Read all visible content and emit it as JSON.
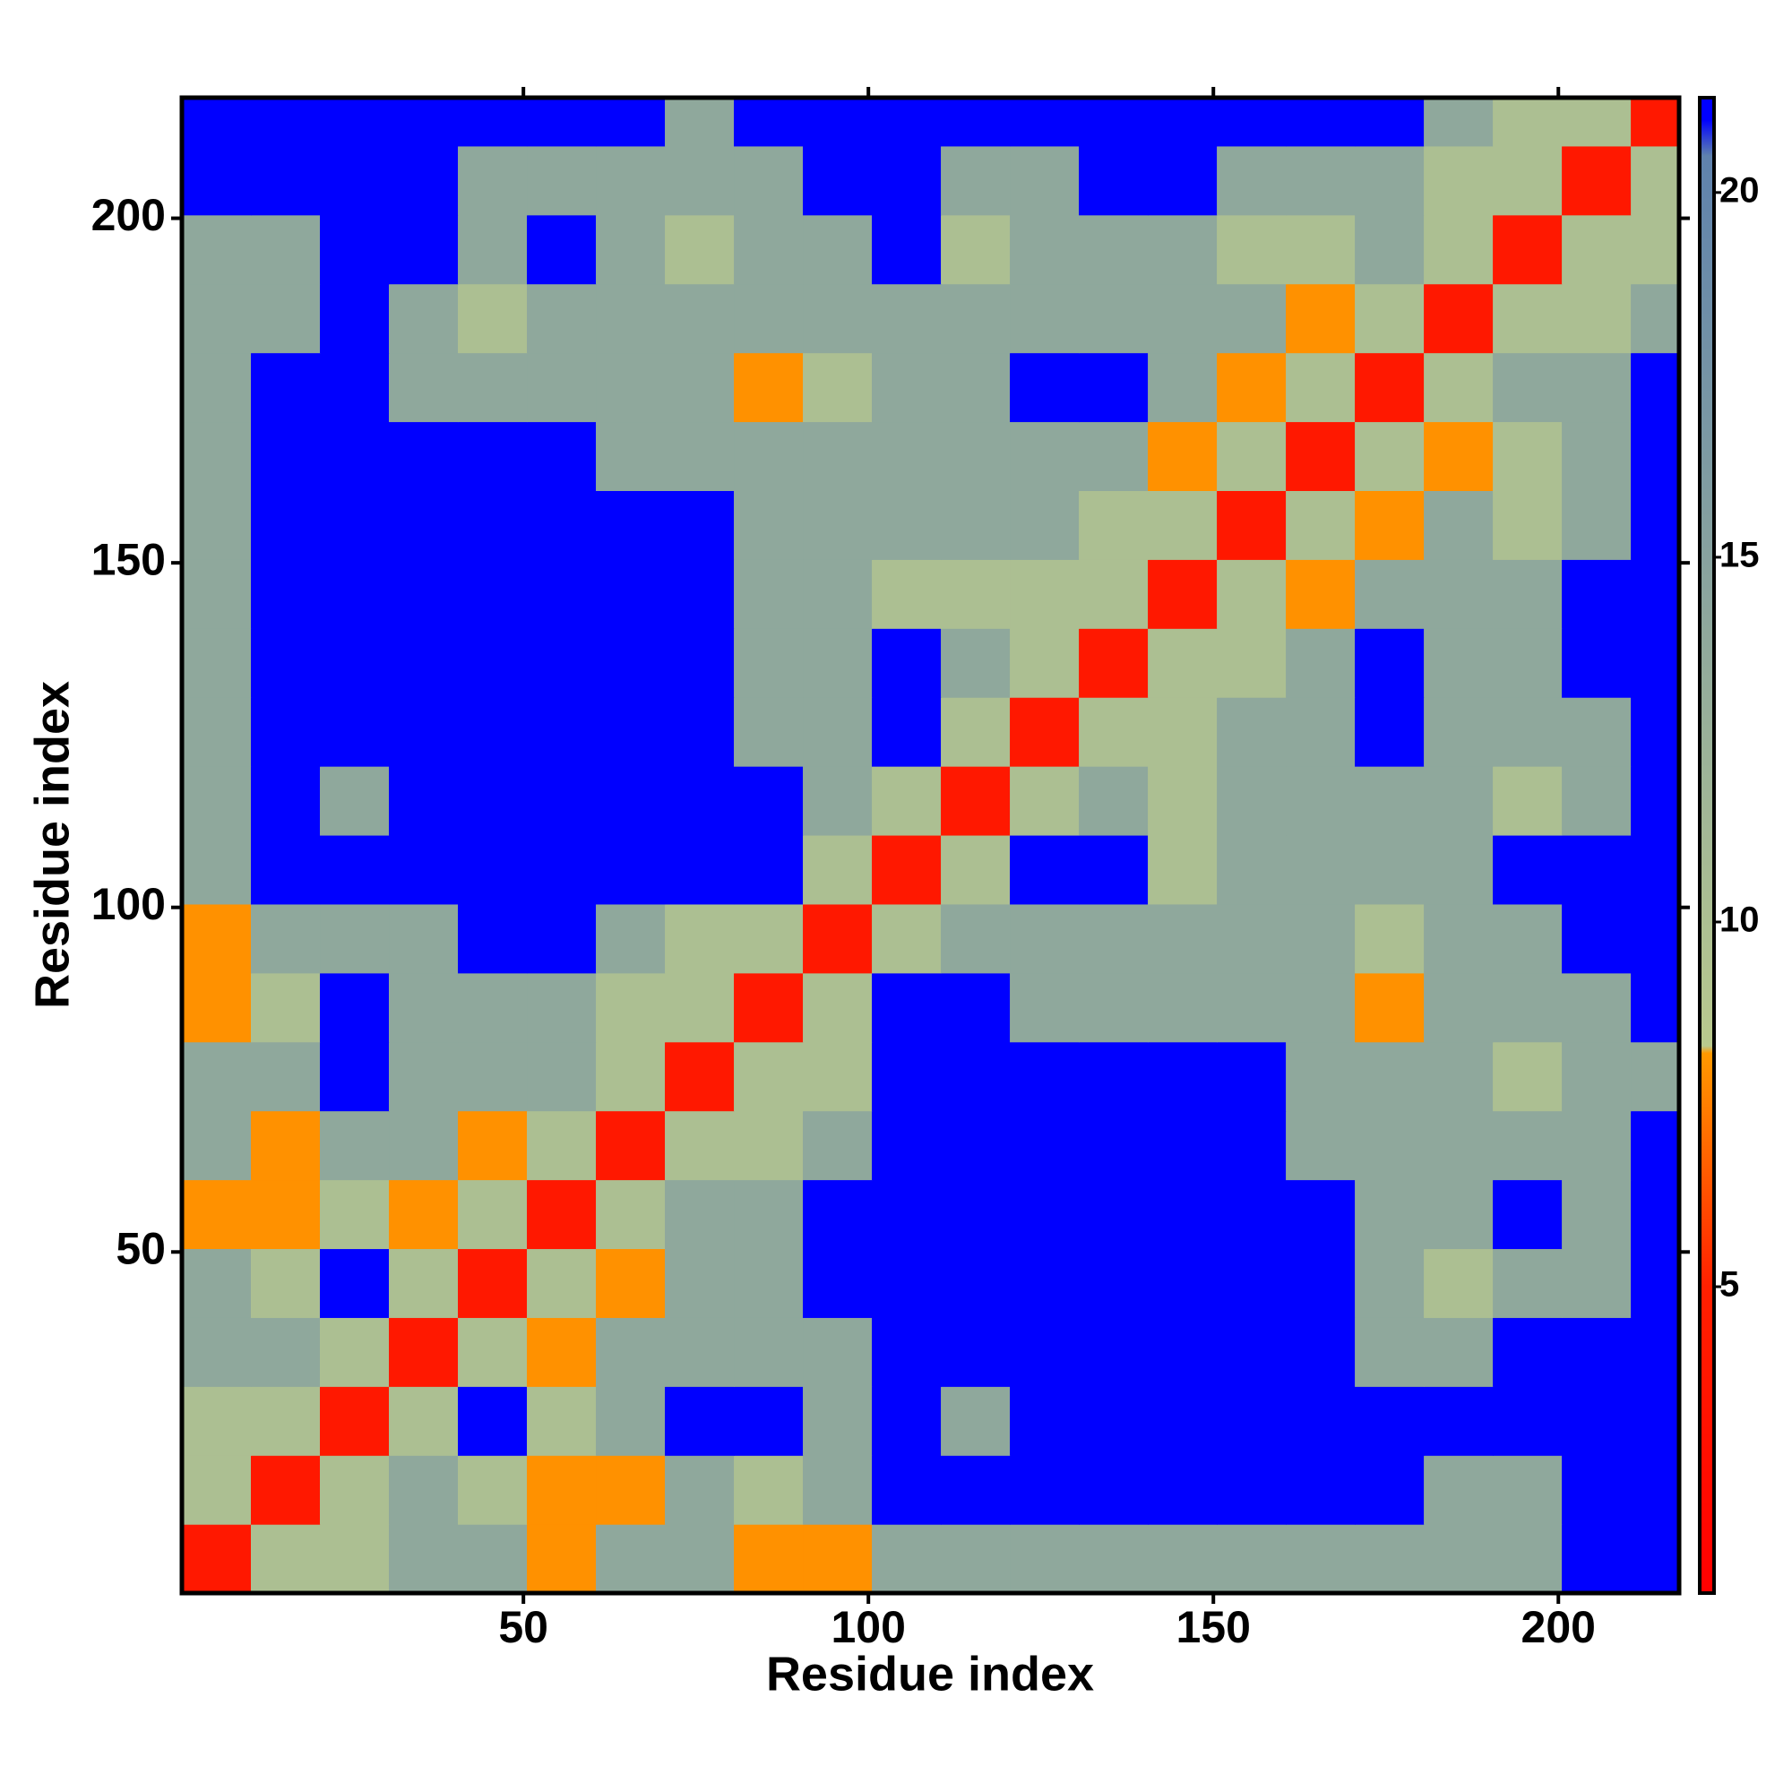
{
  "chart_data": {
    "type": "heatmap",
    "xlabel": "Residue index",
    "ylabel": "Residue index",
    "xbins": [
      0.5,
      10.5,
      20.5,
      30.5,
      40.5,
      50.5,
      60.5,
      70.5,
      80.5,
      90.5,
      100.5,
      110.5,
      120.5,
      130.5,
      140.5,
      150.5,
      160.5,
      170.5,
      180.5,
      190.5,
      200.5,
      210.5,
      217.5
    ],
    "ybins": [
      0.5,
      10.5,
      20.5,
      30.5,
      40.5,
      50.5,
      60.5,
      70.5,
      80.5,
      90.5,
      100.5,
      110.5,
      120.5,
      130.5,
      140.5,
      150.5,
      160.5,
      170.5,
      180.5,
      190.5,
      200.5,
      210.5,
      217.5
    ],
    "z": [
      [
        4,
        10,
        10,
        14,
        14,
        8,
        14,
        14,
        8,
        8,
        14,
        14,
        14,
        14,
        14,
        14,
        14,
        14,
        14,
        14,
        21,
        21
      ],
      [
        10,
        4,
        10,
        14,
        10,
        8,
        8,
        14,
        10,
        14,
        21,
        21,
        21,
        21,
        21,
        21,
        21,
        21,
        14,
        14,
        21,
        21
      ],
      [
        10,
        10,
        4,
        10,
        21,
        10,
        14,
        21,
        21,
        14,
        21,
        14,
        21,
        21,
        21,
        21,
        21,
        21,
        21,
        21,
        21,
        21
      ],
      [
        14,
        14,
        10,
        4,
        10,
        8,
        14,
        14,
        14,
        14,
        21,
        21,
        21,
        21,
        21,
        21,
        21,
        14,
        14,
        21,
        21,
        21
      ],
      [
        14,
        10,
        21,
        10,
        4,
        10,
        8,
        14,
        14,
        21,
        21,
        21,
        21,
        21,
        21,
        21,
        21,
        14,
        10,
        14,
        14,
        21
      ],
      [
        8,
        8,
        10,
        8,
        10,
        4,
        10,
        14,
        14,
        21,
        21,
        21,
        21,
        21,
        21,
        21,
        21,
        14,
        14,
        21,
        14,
        21
      ],
      [
        14,
        8,
        14,
        14,
        8,
        10,
        4,
        10,
        10,
        14,
        21,
        21,
        21,
        21,
        21,
        21,
        14,
        14,
        14,
        14,
        14,
        21
      ],
      [
        14,
        14,
        21,
        14,
        14,
        14,
        10,
        4,
        10,
        10,
        21,
        21,
        21,
        21,
        21,
        21,
        14,
        14,
        14,
        10,
        14,
        14
      ],
      [
        8,
        10,
        21,
        14,
        14,
        14,
        10,
        10,
        4,
        10,
        21,
        21,
        14,
        14,
        14,
        14,
        14,
        8,
        14,
        14,
        14,
        21
      ],
      [
        8,
        14,
        14,
        14,
        21,
        21,
        14,
        10,
        10,
        4,
        10,
        14,
        14,
        14,
        14,
        14,
        14,
        10,
        14,
        14,
        21,
        21
      ],
      [
        14,
        21,
        21,
        21,
        21,
        21,
        21,
        21,
        21,
        10,
        4,
        10,
        21,
        21,
        10,
        14,
        14,
        14,
        14,
        21,
        21,
        21
      ],
      [
        14,
        21,
        14,
        21,
        21,
        21,
        21,
        21,
        21,
        14,
        10,
        4,
        10,
        14,
        10,
        14,
        14,
        14,
        14,
        10,
        14,
        21
      ],
      [
        14,
        21,
        21,
        21,
        21,
        21,
        21,
        21,
        14,
        14,
        21,
        10,
        4,
        10,
        10,
        14,
        14,
        21,
        14,
        14,
        14,
        21
      ],
      [
        14,
        21,
        21,
        21,
        21,
        21,
        21,
        21,
        14,
        14,
        21,
        14,
        10,
        4,
        10,
        10,
        14,
        21,
        14,
        14,
        21,
        21
      ],
      [
        14,
        21,
        21,
        21,
        21,
        21,
        21,
        21,
        14,
        14,
        10,
        10,
        10,
        10,
        4,
        10,
        8,
        14,
        14,
        14,
        21,
        21
      ],
      [
        14,
        21,
        21,
        21,
        21,
        21,
        21,
        21,
        14,
        14,
        14,
        14,
        14,
        10,
        10,
        4,
        10,
        8,
        14,
        10,
        14,
        21
      ],
      [
        14,
        21,
        21,
        21,
        21,
        21,
        14,
        14,
        14,
        14,
        14,
        14,
        14,
        14,
        8,
        10,
        4,
        10,
        8,
        10,
        14,
        21
      ],
      [
        14,
        21,
        21,
        14,
        14,
        14,
        14,
        14,
        8,
        10,
        14,
        14,
        21,
        21,
        14,
        8,
        10,
        4,
        10,
        14,
        14,
        21
      ],
      [
        14,
        14,
        21,
        14,
        10,
        14,
        14,
        14,
        14,
        14,
        14,
        14,
        14,
        14,
        14,
        14,
        8,
        10,
        4,
        10,
        10,
        14
      ],
      [
        14,
        14,
        21,
        21,
        14,
        21,
        14,
        10,
        14,
        14,
        21,
        10,
        14,
        14,
        14,
        10,
        10,
        14,
        10,
        4,
        10,
        10
      ],
      [
        21,
        21,
        21,
        21,
        14,
        14,
        14,
        14,
        14,
        21,
        21,
        14,
        14,
        21,
        21,
        14,
        14,
        14,
        10,
        10,
        4,
        10
      ],
      [
        21,
        21,
        21,
        21,
        21,
        21,
        21,
        14,
        21,
        21,
        21,
        21,
        21,
        21,
        21,
        21,
        21,
        21,
        14,
        10,
        10,
        4
      ]
    ],
    "xlim": [
      0.5,
      217.5
    ],
    "ylim": [
      0.5,
      217.5
    ],
    "xticks": [
      50,
      100,
      150,
      200
    ],
    "yticks": [
      50,
      100,
      150,
      200
    ],
    "colorbar": {
      "lim": [
        0.8,
        21.3
      ],
      "ticks": [
        5,
        10,
        15,
        20
      ]
    },
    "colorscale": [
      [
        0.8,
        "#ff0000"
      ],
      [
        5,
        "#ff2000"
      ],
      [
        8.2,
        "#ff9900"
      ],
      [
        8.3,
        "#b9c98e"
      ],
      [
        20.5,
        "#5f82ad"
      ],
      [
        21,
        "#0000ff"
      ]
    ]
  }
}
